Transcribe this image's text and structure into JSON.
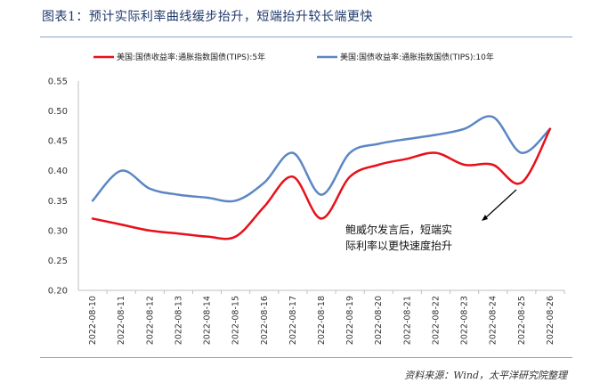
{
  "header": {
    "title": "图表1：预计实际利率曲线缓步抬升，短端抬升较长端更快"
  },
  "footer": {
    "source": "资料来源：Wind，太平洋研究院整理"
  },
  "chart_data": {
    "type": "line",
    "x": [
      "2022-08-10",
      "2022-08-11",
      "2022-08-12",
      "2022-08-13",
      "2022-08-14",
      "2022-08-15",
      "2022-08-16",
      "2022-08-17",
      "2022-08-18",
      "2022-08-19",
      "2022-08-20",
      "2022-08-21",
      "2022-08-22",
      "2022-08-23",
      "2022-08-24",
      "2022-08-25",
      "2022-08-26"
    ],
    "ylim": [
      0.2,
      0.55
    ],
    "yticks": [
      "0.20",
      "0.25",
      "0.30",
      "0.35",
      "0.40",
      "0.45",
      "0.50",
      "0.55"
    ],
    "series": [
      {
        "name": "美国:国债收益率:通胀指数国债(TIPS):5年",
        "color": "#e8101a",
        "values": [
          0.32,
          0.31,
          0.3,
          0.295,
          0.29,
          0.29,
          0.34,
          0.39,
          0.32,
          0.39,
          0.41,
          0.42,
          0.43,
          0.41,
          0.41,
          0.38,
          0.47
        ]
      },
      {
        "name": "美国:国债收益率:通胀指数国债(TIPS):10年",
        "color": "#5b86c5",
        "values": [
          0.35,
          0.4,
          0.37,
          0.36,
          0.355,
          0.35,
          0.38,
          0.43,
          0.36,
          0.43,
          0.445,
          0.453,
          0.46,
          0.47,
          0.49,
          0.43,
          0.47
        ]
      }
    ],
    "annotation": {
      "line1": "鲍威尔发言后，短端实",
      "line2": "际利率以更快速度抬升"
    },
    "grid": false,
    "legend_position": "top"
  }
}
